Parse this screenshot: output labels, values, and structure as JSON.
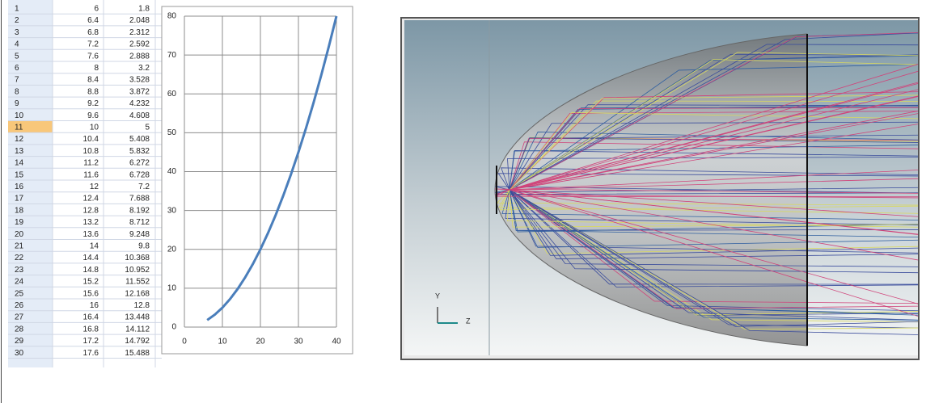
{
  "spreadsheet": {
    "rows": [
      [
        1,
        6,
        1.8
      ],
      [
        2,
        6.4,
        2.048
      ],
      [
        3,
        6.8,
        2.312
      ],
      [
        4,
        7.2,
        2.592
      ],
      [
        5,
        7.6,
        2.888
      ],
      [
        6,
        8,
        3.2
      ],
      [
        7,
        8.4,
        3.528
      ],
      [
        8,
        8.8,
        3.872
      ],
      [
        9,
        9.2,
        4.232
      ],
      [
        10,
        9.6,
        4.608
      ],
      [
        11,
        10,
        5
      ],
      [
        12,
        10.4,
        5.408
      ],
      [
        13,
        10.8,
        5.832
      ],
      [
        14,
        11.2,
        6.272
      ],
      [
        15,
        11.6,
        6.728
      ],
      [
        16,
        12,
        7.2
      ],
      [
        17,
        12.4,
        7.688
      ],
      [
        18,
        12.8,
        8.192
      ],
      [
        19,
        13.2,
        8.712
      ],
      [
        20,
        13.6,
        9.248
      ],
      [
        21,
        14,
        9.8
      ],
      [
        22,
        14.4,
        10.368
      ],
      [
        23,
        14.8,
        10.952
      ],
      [
        24,
        15.2,
        11.552
      ],
      [
        25,
        15.6,
        12.168
      ],
      [
        26,
        16,
        12.8
      ],
      [
        27,
        16.4,
        13.448
      ],
      [
        28,
        16.8,
        14.112
      ],
      [
        29,
        17.2,
        14.792
      ],
      [
        30,
        17.6,
        15.488
      ]
    ]
  },
  "chart_data": {
    "type": "line",
    "x": [
      6,
      8,
      10,
      12,
      14,
      16,
      18,
      20,
      22,
      24,
      26,
      28,
      30,
      32,
      34,
      36,
      38,
      40
    ],
    "series": [
      {
        "color": "#4a7ebb",
        "values": [
          1.8,
          3.2,
          5,
          7.2,
          9.8,
          12.8,
          16.2,
          20,
          24.2,
          28.8,
          33.8,
          39.2,
          45,
          51.2,
          57.8,
          64.8,
          72.2,
          80
        ]
      }
    ],
    "xlim": [
      0,
      40
    ],
    "xticks": [
      0,
      10,
      20,
      30,
      40
    ],
    "ylim": [
      0,
      80
    ],
    "yticks": [
      0,
      10,
      20,
      30,
      40,
      50,
      60,
      70,
      80
    ],
    "grid": true
  },
  "viewport": {
    "axis_labels": [
      "Y",
      "Z"
    ]
  }
}
